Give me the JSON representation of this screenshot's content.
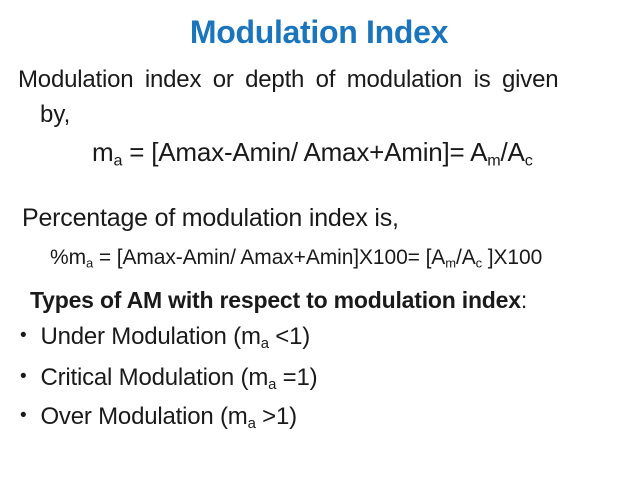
{
  "slide": {
    "title": "Modulation Index",
    "title_color": "#1b75bc",
    "text_color": "#1a1a1a",
    "bullet_glyph": "•",
    "paragraph1": {
      "line1": "Modulation index or depth of modulation is given",
      "line2": "by,"
    },
    "formula1": [
      {
        "t": "m"
      },
      {
        "sub": "a"
      },
      {
        "t": " = [Amax-Amin/ Amax+Amin]= A"
      },
      {
        "sub": "m"
      },
      {
        "t": "/A"
      },
      {
        "sub": "c"
      }
    ],
    "paragraph2": "Percentage of modulation index is,",
    "formula2": [
      {
        "t": "%m"
      },
      {
        "sub": "a"
      },
      {
        "t": " = [Amax-Amin/ Amax+Amin]X100= [A"
      },
      {
        "sub": "m"
      },
      {
        "t": "/A"
      },
      {
        "sub": "c"
      },
      {
        "t": " ]X100"
      }
    ],
    "types_heading": {
      "bold": "Types of AM with respect to modulation index",
      "suffix": ":"
    },
    "bullets": [
      {
        "segments": [
          {
            "t": "Under Modulation (m"
          },
          {
            "sub": "a"
          },
          {
            "t": " <1)"
          }
        ]
      },
      {
        "segments": [
          {
            "t": "Critical Modulation (m"
          },
          {
            "sub": "a"
          },
          {
            "t": " =1)"
          }
        ]
      },
      {
        "segments": [
          {
            "t": "Over Modulation (m"
          },
          {
            "sub": "a"
          },
          {
            "t": " >1)"
          }
        ]
      }
    ]
  }
}
